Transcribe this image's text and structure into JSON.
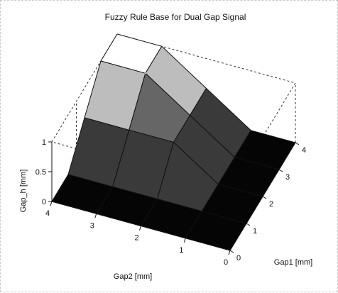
{
  "chart_data": {
    "type": "surface3d",
    "title": "Fuzzy Rule Base for Dual Gap Signal",
    "xlabel": "Gap1 [mm]",
    "ylabel": "Gap2 [mm]",
    "zlabel": "Gap_h [mm]",
    "xlim": [
      0,
      4
    ],
    "ylim": [
      0,
      4
    ],
    "zlim": [
      0,
      1
    ],
    "x_ticks": [
      "0",
      "1",
      "2",
      "3",
      "4"
    ],
    "y_ticks": [
      "0",
      "1",
      "2",
      "3",
      "4"
    ],
    "z_ticks": [
      "0",
      "0.5",
      "1"
    ],
    "gap1_grid": [
      0,
      1,
      2,
      3,
      4
    ],
    "gap2_grid": [
      0,
      1,
      2,
      3,
      4
    ],
    "gap_h": [
      [
        0,
        0,
        0,
        0,
        0
      ],
      [
        0,
        0,
        0,
        0,
        0
      ],
      [
        0,
        0,
        0.5,
        0.5,
        0.5
      ],
      [
        0,
        0,
        0.5,
        1,
        1
      ],
      [
        0,
        0,
        0.5,
        1,
        1
      ]
    ],
    "grid": false,
    "box": true
  }
}
